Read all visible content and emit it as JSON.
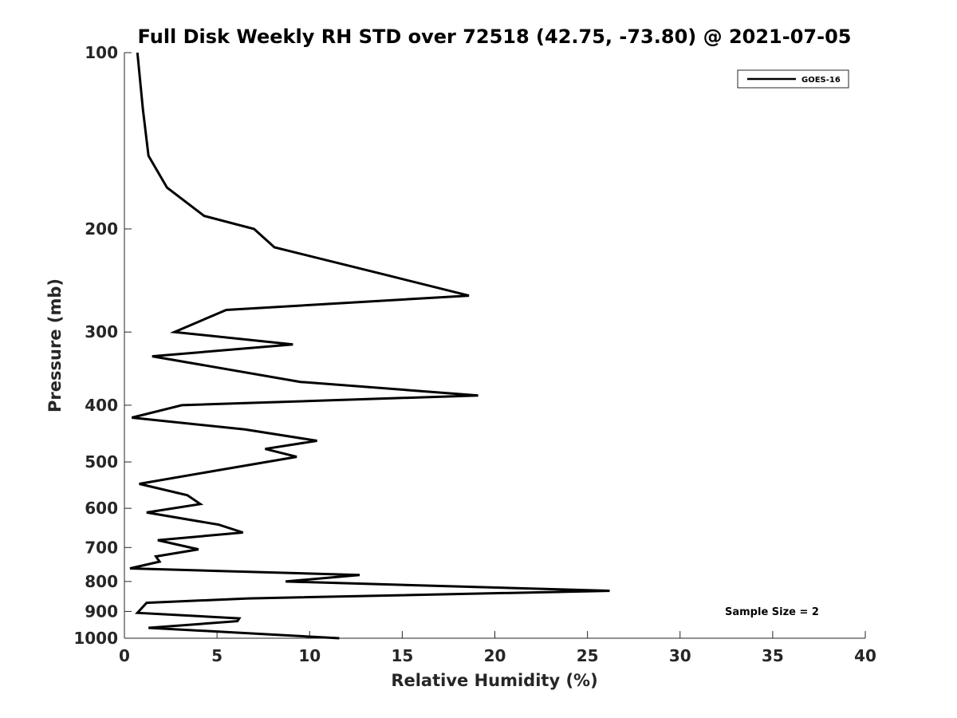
{
  "chart_data": {
    "type": "line",
    "title": "Full Disk Weekly RH STD over 72518 (42.75, -73.80) @ 2021-07-05",
    "xlabel": "Relative Humidity (%)",
    "ylabel": "Pressure (mb)",
    "xlim": [
      0,
      40
    ],
    "ylim": [
      100,
      1000
    ],
    "y_scale": "log",
    "y_reversed": true,
    "grid": false,
    "x_ticks": [
      0,
      5,
      10,
      15,
      20,
      25,
      30,
      35,
      40
    ],
    "x_tick_labels": [
      "0",
      "5",
      "10",
      "15",
      "20",
      "25",
      "30",
      "35",
      "40"
    ],
    "y_ticks": [
      100,
      200,
      300,
      400,
      500,
      600,
      700,
      800,
      900,
      1000
    ],
    "y_tick_labels": [
      "100",
      "200",
      "300",
      "400",
      "500",
      "600",
      "700",
      "800",
      "900",
      "1000"
    ],
    "legend": {
      "position": "top-right",
      "entries": [
        "GOES-16"
      ]
    },
    "annotation": "Sample Size = 2",
    "series": [
      {
        "name": "GOES-16",
        "color": "#000000",
        "rh": [
          0.7,
          1.0,
          1.3,
          2.3,
          4.3,
          7.0,
          8.1,
          14.2,
          18.6,
          5.5,
          2.7,
          9.1,
          1.5,
          9.5,
          19.1,
          3.1,
          0.4,
          6.5,
          10.4,
          7.6,
          9.3,
          5.3,
          0.8,
          3.4,
          4.1,
          1.2,
          5.1,
          6.4,
          1.8,
          4.0,
          1.7,
          1.9,
          0.3,
          12.7,
          8.7,
          26.2,
          6.7,
          1.2,
          0.7,
          6.2,
          6.1,
          1.3,
          11.6
        ],
        "pressure": [
          100,
          125,
          150,
          170,
          190,
          200,
          215,
          240,
          260,
          275,
          300,
          315,
          330,
          365,
          385,
          400,
          420,
          440,
          460,
          475,
          490,
          515,
          545,
          570,
          590,
          610,
          640,
          660,
          680,
          705,
          725,
          740,
          760,
          780,
          800,
          830,
          855,
          870,
          905,
          925,
          935,
          960,
          1000
        ]
      }
    ]
  }
}
